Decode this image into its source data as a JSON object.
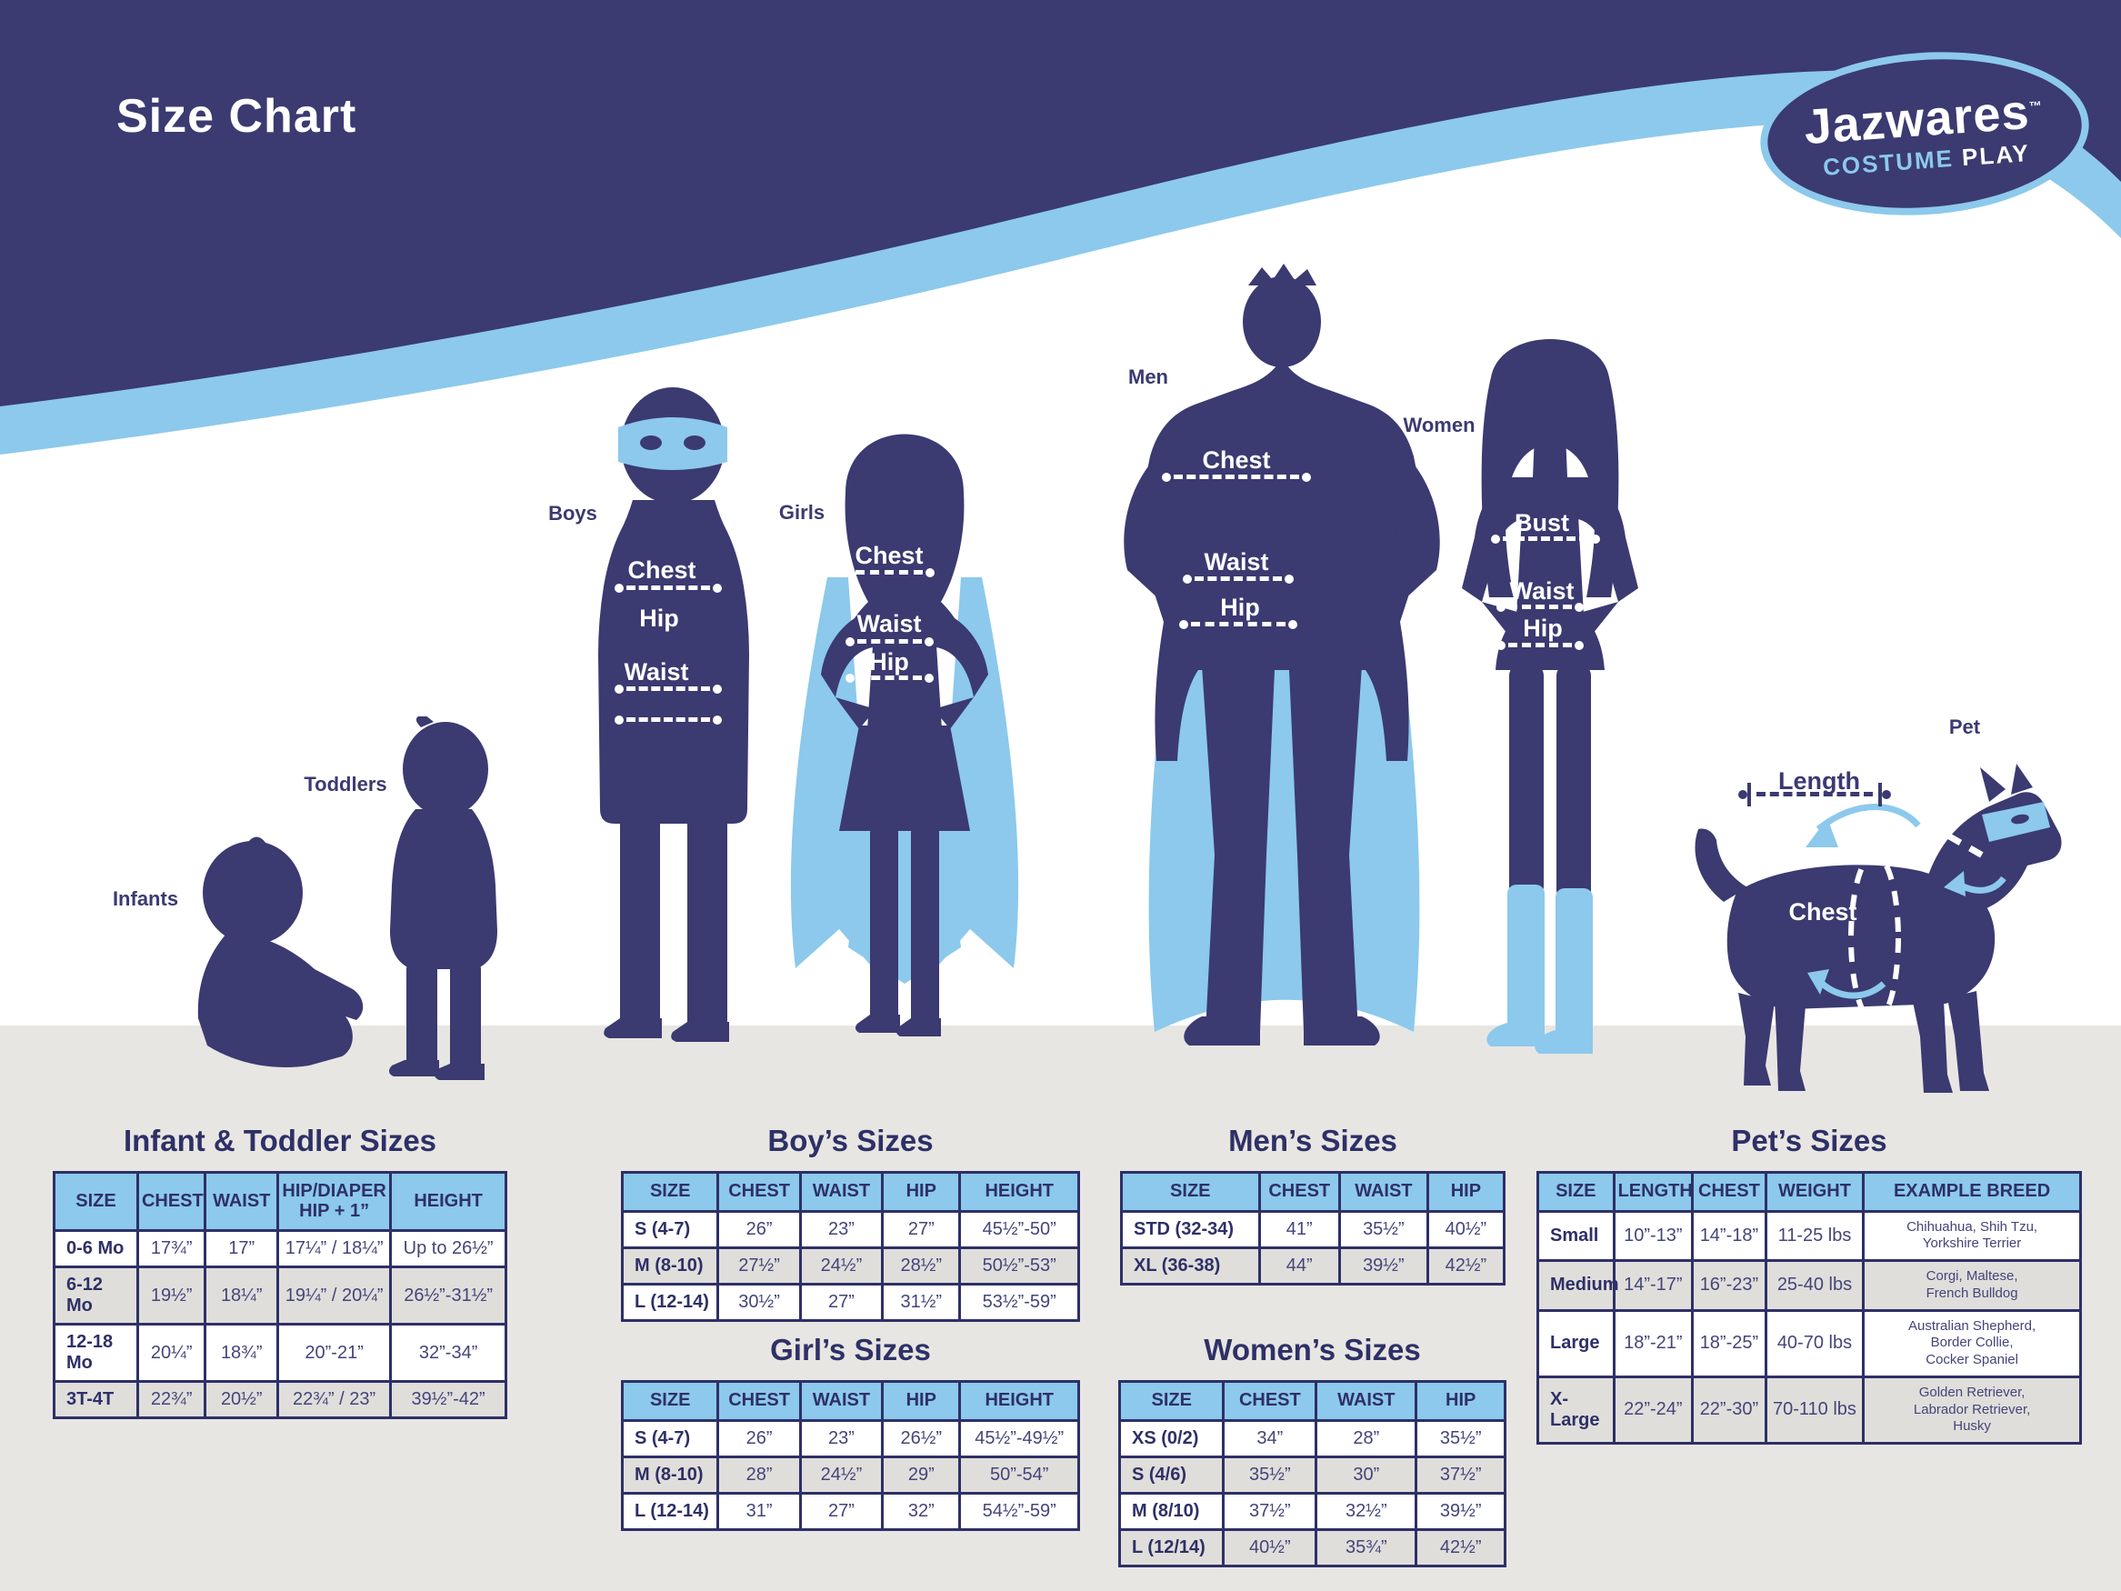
{
  "page": {
    "title": "Size Chart"
  },
  "colors": {
    "navy": "#3B3A71",
    "light_blue": "#8CC9EC",
    "table_header_blue": "#8CC9EC",
    "table_alt_row": "#E0DEDB",
    "ground_gray": "#E8E6E2",
    "text_navy": "#2E3067"
  },
  "logo": {
    "brand": "Jazwares",
    "trademark": "™",
    "costume": "COSTUME",
    "play": "PLAY"
  },
  "figures": {
    "infants": {
      "label": "Infants"
    },
    "toddlers": {
      "label": "Toddlers"
    },
    "boys": {
      "label": "Boys",
      "chest": "Chest",
      "hip": "Hip",
      "waist": "Waist"
    },
    "girls": {
      "label": "Girls",
      "chest": "Chest",
      "waist": "Waist",
      "hip": "Hip"
    },
    "men": {
      "label": "Men",
      "chest": "Chest",
      "waist": "Waist",
      "hip": "Hip"
    },
    "women": {
      "label": "Women",
      "bust": "Bust",
      "waist": "Waist",
      "hip": "Hip"
    },
    "pet": {
      "label": "Pet",
      "length": "Length",
      "chest": "Chest"
    }
  },
  "tables": {
    "infant_toddler": {
      "title": "Infant & Toddler Sizes",
      "headers": [
        "SIZE",
        "CHEST",
        "WAIST",
        "HIP/DIAPER\nHIP + 1”",
        "HEIGHT"
      ],
      "rows": [
        [
          "0-6 Mo",
          "17¾”",
          "17”",
          "17¼” / 18¼”",
          "Up to 26½”"
        ],
        [
          "6-12 Mo",
          "19½”",
          "18¼”",
          "19¼” / 20¼”",
          "26½”-31½”"
        ],
        [
          "12-18 Mo",
          "20¼”",
          "18¾”",
          "20”-21”",
          "32”-34”"
        ],
        [
          "3T-4T",
          "22¾”",
          "20½”",
          "22¾” / 23”",
          "39½”-42”"
        ]
      ]
    },
    "boys": {
      "title": "Boy’s Sizes",
      "headers": [
        "SIZE",
        "CHEST",
        "WAIST",
        "HIP",
        "HEIGHT"
      ],
      "rows": [
        [
          "S (4-7)",
          "26”",
          "23”",
          "27”",
          "45½”-50”"
        ],
        [
          "M (8-10)",
          "27½”",
          "24½”",
          "28½”",
          "50½”-53”"
        ],
        [
          "L (12-14)",
          "30½”",
          "27”",
          "31½”",
          "53½”-59”"
        ]
      ]
    },
    "girls": {
      "title": "Girl’s Sizes",
      "headers": [
        "SIZE",
        "CHEST",
        "WAIST",
        "HIP",
        "HEIGHT"
      ],
      "rows": [
        [
          "S (4-7)",
          "26”",
          "23”",
          "26½”",
          "45½”-49½”"
        ],
        [
          "M (8-10)",
          "28”",
          "24½”",
          "29”",
          "50”-54”"
        ],
        [
          "L (12-14)",
          "31”",
          "27”",
          "32”",
          "54½”-59”"
        ]
      ]
    },
    "mens": {
      "title": "Men’s Sizes",
      "headers": [
        "SIZE",
        "CHEST",
        "WAIST",
        "HIP"
      ],
      "rows": [
        [
          "STD (32-34)",
          "41”",
          "35½”",
          "40½”"
        ],
        [
          "XL (36-38)",
          "44”",
          "39½”",
          "42½”"
        ]
      ]
    },
    "womens": {
      "title": "Women’s Sizes",
      "headers": [
        "SIZE",
        "CHEST",
        "WAIST",
        "HIP"
      ],
      "rows": [
        [
          "XS (0/2)",
          "34”",
          "28”",
          "35½”"
        ],
        [
          "S (4/6)",
          "35½”",
          "30”",
          "37½”"
        ],
        [
          "M (8/10)",
          "37½”",
          "32½”",
          "39½”"
        ],
        [
          "L (12/14)",
          "40½”",
          "35¾”",
          "42½”"
        ]
      ]
    },
    "pets": {
      "title": "Pet’s Sizes",
      "headers": [
        "SIZE",
        "LENGTH",
        "CHEST",
        "WEIGHT",
        "EXAMPLE BREED"
      ],
      "rows": [
        [
          "Small",
          "10”-13”",
          "14”-18”",
          "11-25 lbs",
          "Chihuahua, Shih Tzu,\nYorkshire Terrier"
        ],
        [
          "Medium",
          "14”-17”",
          "16”-23”",
          "25-40 lbs",
          "Corgi, Maltese,\nFrench Bulldog"
        ],
        [
          "Large",
          "18”-21”",
          "18”-25”",
          "40-70 lbs",
          "Australian Shepherd,\nBorder Collie,\nCocker Spaniel"
        ],
        [
          "X-Large",
          "22”-24”",
          "22”-30”",
          "70-110 lbs",
          "Golden Retriever,\nLabrador Retriever,\nHusky"
        ]
      ]
    }
  }
}
